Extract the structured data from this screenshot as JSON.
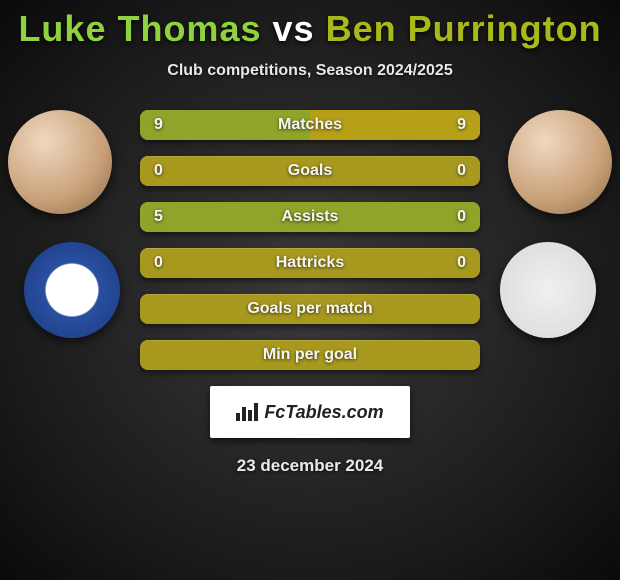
{
  "title": {
    "player1": "Luke Thomas",
    "vs": "vs",
    "player2": "Ben Purrington",
    "player1_color": "#8fd13f",
    "vs_color": "#ffffff",
    "player2_color": "#aab91a"
  },
  "subtitle": "Club competitions, Season 2024/2025",
  "stat_colors": {
    "player1_fill": "#8fa428",
    "player2_fill": "#b6a018",
    "empty_fill": "#a8991e"
  },
  "stats": [
    {
      "label": "Matches",
      "p1": "9",
      "p2": "9",
      "p1_pct": 50,
      "p2_pct": 50
    },
    {
      "label": "Goals",
      "p1": "0",
      "p2": "0",
      "p1_pct": 0,
      "p2_pct": 0
    },
    {
      "label": "Assists",
      "p1": "5",
      "p2": "0",
      "p1_pct": 100,
      "p2_pct": 0
    },
    {
      "label": "Hattricks",
      "p1": "0",
      "p2": "0",
      "p1_pct": 0,
      "p2_pct": 0
    },
    {
      "label": "Goals per match",
      "p1": "",
      "p2": "",
      "p1_pct": 0,
      "p2_pct": 0
    },
    {
      "label": "Min per goal",
      "p1": "",
      "p2": "",
      "p1_pct": 0,
      "p2_pct": 0
    }
  ],
  "footer": {
    "site": "FcTables.com",
    "date": "23 december 2024"
  }
}
